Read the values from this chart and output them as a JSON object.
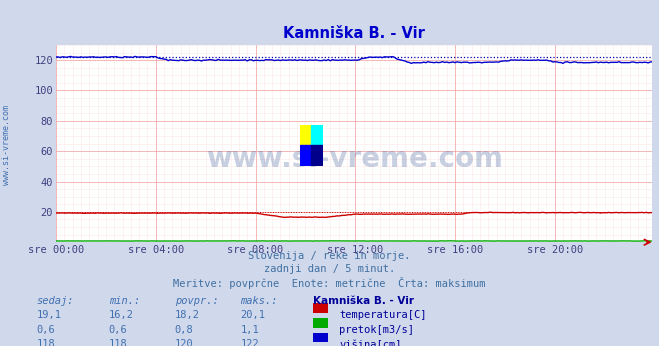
{
  "title": "Kamniška B. - Vir",
  "title_color": "#0000cc",
  "bg_color": "#d0d8ec",
  "plot_bg_color": "#ffffff",
  "grid_color": "#f0a0a0",
  "grid_fine_color": "#fce8e8",
  "xlim": [
    0,
    287
  ],
  "ylim": [
    0,
    130
  ],
  "yticks": [
    20,
    40,
    60,
    80,
    100,
    120
  ],
  "xtick_labels": [
    "sre 00:00",
    "sre 04:00",
    "sre 08:00",
    "sre 12:00",
    "sre 16:00",
    "sre 20:00"
  ],
  "xtick_positions": [
    0,
    48,
    96,
    144,
    192,
    240
  ],
  "watermark": "www.si-vreme.com",
  "watermark_color": "#3a5a9a",
  "watermark_alpha": 0.28,
  "ylabel_left": "www.si-vreme.com",
  "ylabel_color": "#4070b0",
  "subtitle_lines": [
    "Slovenija / reke in morje.",
    "zadnji dan / 5 minut.",
    "Meritve: povprčne  Enote: metrične  Črta: maksimum"
  ],
  "subtitle_color": "#4070a0",
  "legend_title": "Kamniška B. - Vir",
  "legend_title_color": "#000099",
  "legend_items": [
    {
      "label": "temperatura[C]",
      "color": "#cc0000"
    },
    {
      "label": "pretok[m3/s]",
      "color": "#00aa00"
    },
    {
      "label": "višina[cm]",
      "color": "#0000cc"
    }
  ],
  "table_headers": [
    "sedaj:",
    "min.:",
    "povpr.:",
    "maks.:"
  ],
  "table_data": [
    [
      "19,1",
      "16,2",
      "18,2",
      "20,1"
    ],
    [
      "0,6",
      "0,6",
      "0,8",
      "1,1"
    ],
    [
      "118",
      "118",
      "120",
      "122"
    ]
  ],
  "table_color": "#4070b0",
  "n_points": 288,
  "max_height": 122.0,
  "max_temp": 20.1,
  "arrow_color": "#cc0000"
}
